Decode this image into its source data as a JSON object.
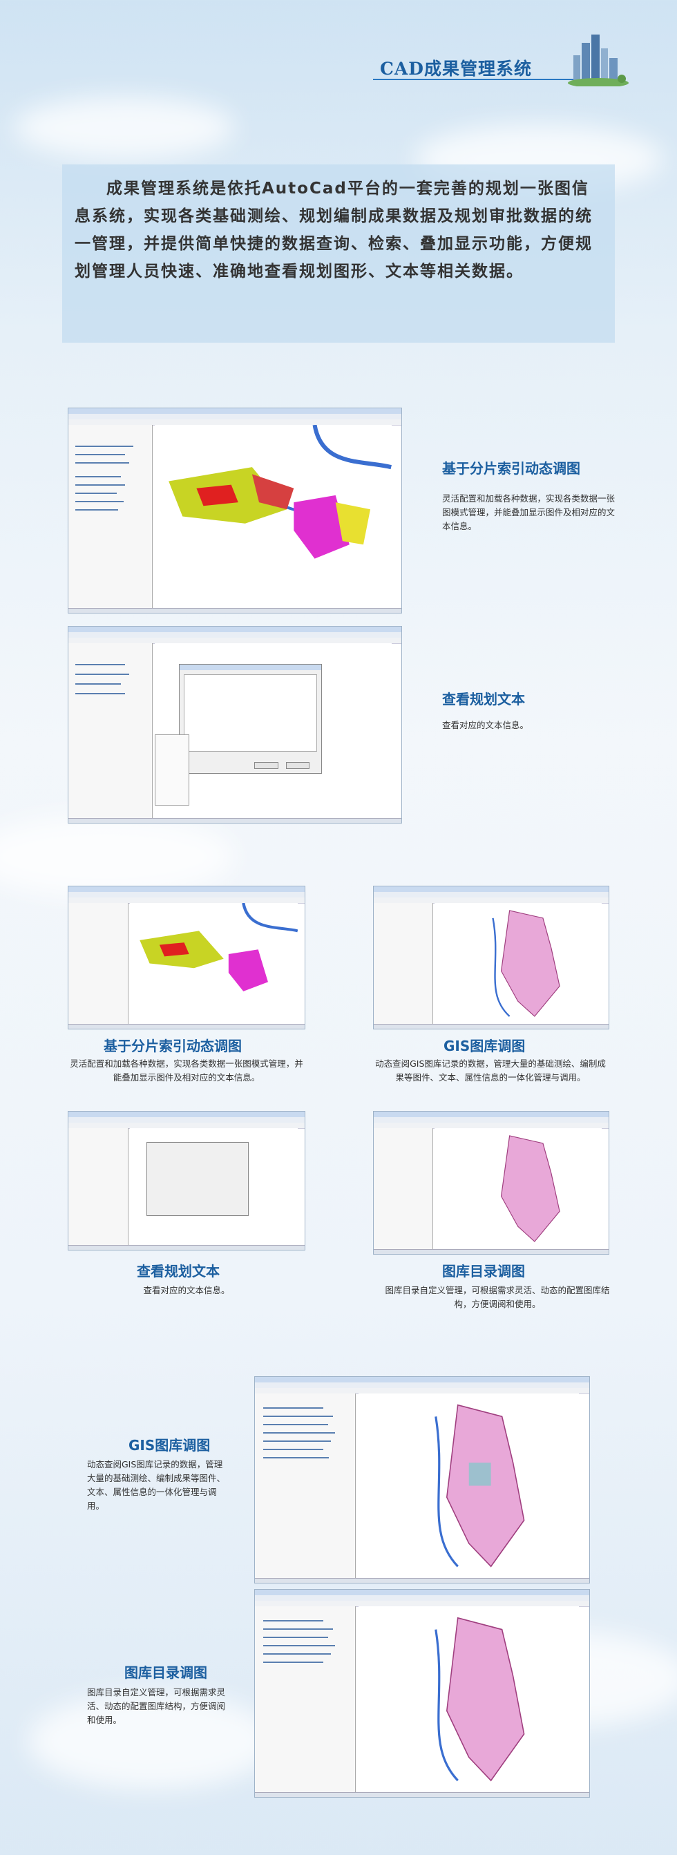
{
  "header": {
    "title": "CAD成果管理系统"
  },
  "intro": {
    "text": "成果管理系统是依托AutoCad平台的一套完善的规划一张图信息系统，实现各类基础测绘、规划编制成果数据及规划审批数据的统一管理，并提供简单快捷的数据查询、检索、叠加显示功能，方便规划管理人员快速、准确地查看规划图形、文本等相关数据。"
  },
  "sections": {
    "s1": {
      "title": "基于分片索引动态调图",
      "desc": "灵活配置和加载各种数据，实现各类数据一张图模式管理，并能叠加显示图件及相对应的文本信息。"
    },
    "s2": {
      "title": "查看规划文本",
      "desc": "查看对应的文本信息。"
    },
    "s3": {
      "title": "基于分片索引动态调图",
      "desc": "灵活配置和加载各种数据，实现各类数据一张图模式管理，并能叠加显示图件及相对应的文本信息。"
    },
    "s4": {
      "title": "GIS图库调图",
      "desc": "动态查阅GIS图库记录的数据，管理大量的基础测绘、编制成果等图件、文本、属性信息的一体化管理与调用。"
    },
    "s5": {
      "title": "查看规划文本",
      "desc": "查看对应的文本信息。"
    },
    "s6": {
      "title": "图库目录调图",
      "desc": "图库目录自定义管理，可根据需求灵活、动态的配置图库结构，方便调阅和使用。"
    },
    "s7": {
      "title": "GIS图库调图",
      "desc": "动态查阅GIS图库记录的数据，管理大量的基础测绘、编制成果等图件、文本、属性信息的一体化管理与调用。"
    },
    "s8": {
      "title": "图库目录调图",
      "desc": "图库目录自定义管理，可根据需求灵活、动态的配置图库结构，方便调阅和使用。"
    }
  },
  "colors": {
    "accent": "#1c5fa0",
    "intro_bg": "#c3dcf0"
  }
}
